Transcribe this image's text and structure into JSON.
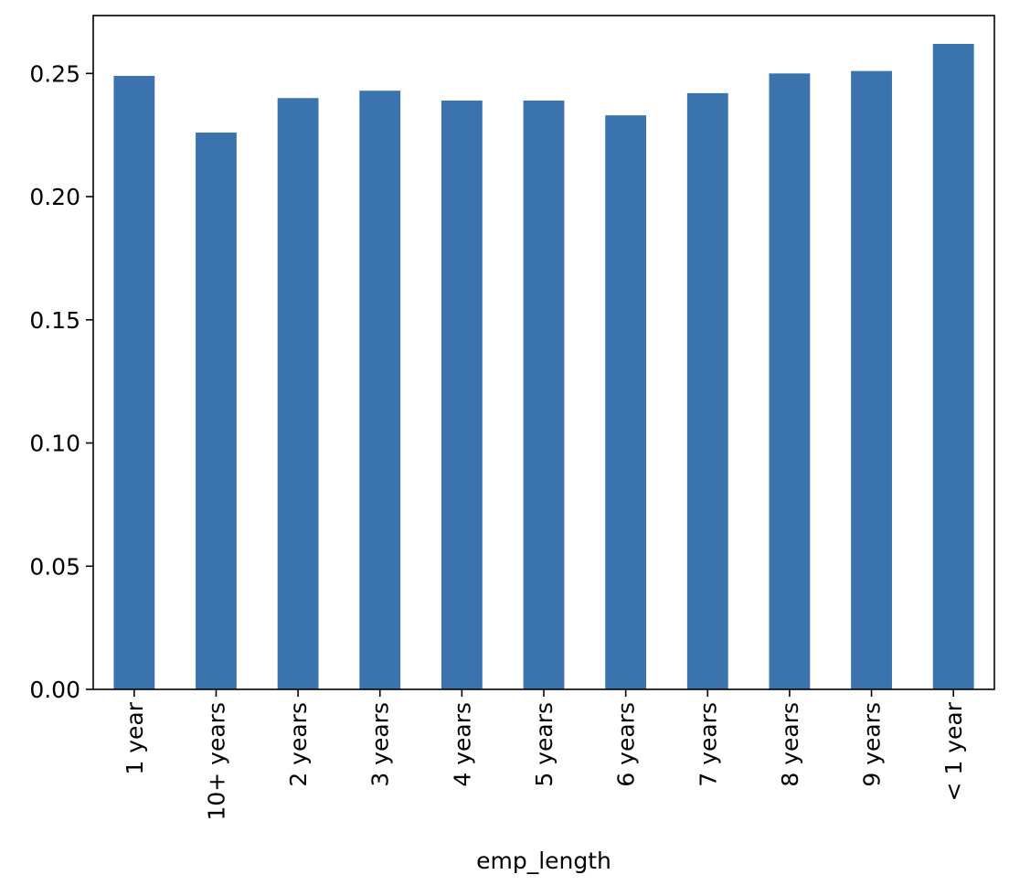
{
  "chart_data": {
    "type": "bar",
    "title": "",
    "xlabel": "emp_length",
    "ylabel": "",
    "categories": [
      "1 year",
      "10+ years",
      "2 years",
      "3 years",
      "4 years",
      "5 years",
      "6 years",
      "7 years",
      "8 years",
      "9 years",
      "< 1 year"
    ],
    "values": [
      0.249,
      0.226,
      0.24,
      0.243,
      0.239,
      0.239,
      0.233,
      0.242,
      0.25,
      0.251,
      0.262
    ],
    "ylim": [
      0,
      0.2735
    ],
    "yticks": [
      0.0,
      0.05,
      0.1,
      0.15,
      0.2,
      0.25
    ],
    "ytick_labels": [
      "0.00",
      "0.05",
      "0.10",
      "0.15",
      "0.20",
      "0.25"
    ],
    "bar_color": "#3a73ad",
    "grid": false,
    "legend": false
  }
}
